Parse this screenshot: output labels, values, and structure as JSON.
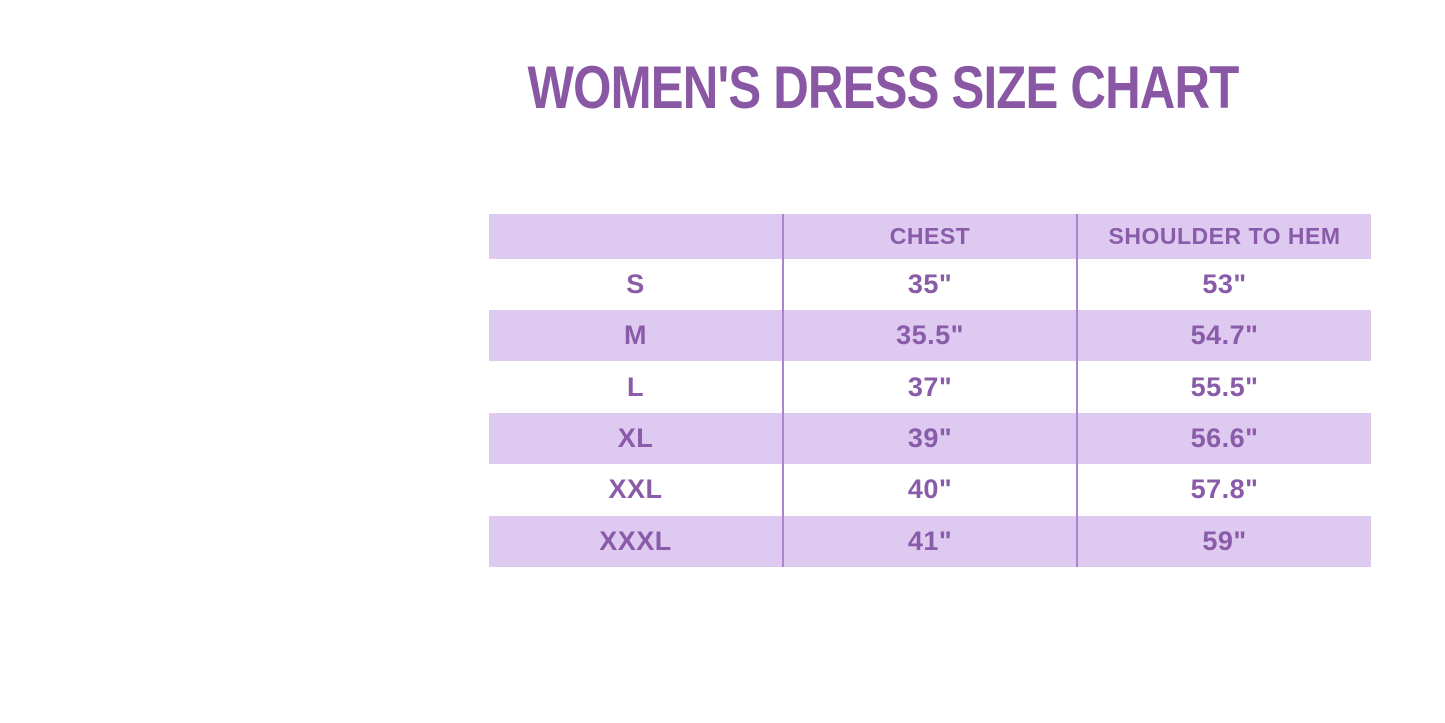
{
  "title": {
    "text": "WOMEN'S DRESS SIZE CHART"
  },
  "chart_data": {
    "type": "table",
    "title": "WOMEN'S DRESS SIZE CHART",
    "columns": [
      "",
      "CHEST",
      "SHOULDER TO HEM"
    ],
    "rows": [
      [
        "S",
        "35\"",
        "53\""
      ],
      [
        "M",
        "35.5\"",
        "54.7\""
      ],
      [
        "L",
        "37\"",
        "55.5\""
      ],
      [
        "XL",
        "39\"",
        "56.6\""
      ],
      [
        "XXL",
        "40\"",
        "57.8\""
      ],
      [
        "XXXL",
        "41\"",
        "59\""
      ]
    ],
    "layout": {
      "header_row_shaded": true,
      "body_row_shading": "alternating, starting white",
      "column_dividers": true,
      "outer_border": false
    }
  },
  "colors": {
    "background": "#ffffff",
    "title_purple": "#8a57a5",
    "table_text_purple": "#8a5ba8",
    "row_lavender": "#dec9f1",
    "row_white": "#ffffff",
    "column_divider": "#ac83ce"
  }
}
